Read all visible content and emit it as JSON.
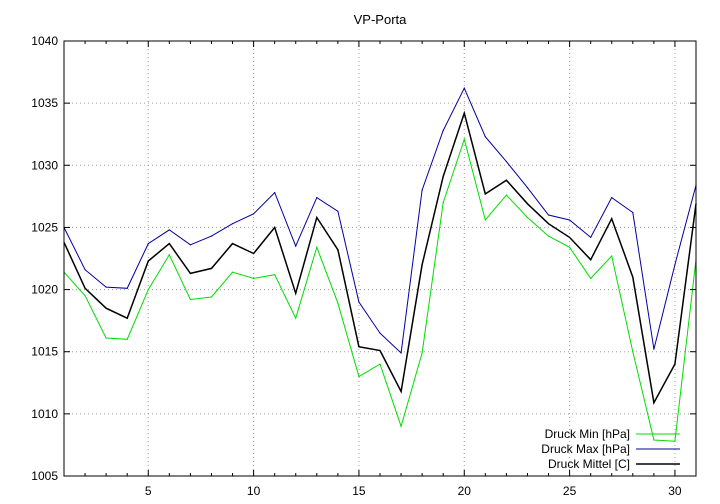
{
  "chart_data": {
    "type": "line",
    "title": "VP-Porta",
    "xlabel": "",
    "ylabel": "",
    "xlim": [
      1,
      31
    ],
    "ylim": [
      1005,
      1040
    ],
    "xticks": [
      5,
      10,
      15,
      20,
      25,
      30
    ],
    "yticks": [
      1005,
      1010,
      1015,
      1020,
      1025,
      1030,
      1035,
      1040
    ],
    "grid": true,
    "legend_position": "bottom-right",
    "x": [
      1,
      2,
      3,
      4,
      5,
      6,
      7,
      8,
      9,
      10,
      11,
      12,
      13,
      14,
      15,
      16,
      17,
      18,
      19,
      20,
      21,
      22,
      23,
      24,
      25,
      26,
      27,
      28,
      29,
      30,
      31
    ],
    "series": [
      {
        "name": "Druck Min [hPa]",
        "color": "#00dd00",
        "values": [
          1021.4,
          1019.5,
          1016.1,
          1016.0,
          1020.0,
          1022.8,
          1019.2,
          1019.4,
          1021.4,
          1020.9,
          1021.2,
          1017.7,
          1023.4,
          1018.9,
          1013.0,
          1014.0,
          1009.0,
          1014.9,
          1027.0,
          1032.1,
          1025.6,
          1027.6,
          1025.8,
          1024.3,
          1023.4,
          1020.9,
          1022.7,
          1015.0,
          1007.9,
          1007.8,
          1022.4
        ]
      },
      {
        "name": "Druck Max [hPa]",
        "color": "#0000a0",
        "values": [
          1025.0,
          1021.6,
          1020.2,
          1020.1,
          1023.7,
          1024.8,
          1023.6,
          1024.3,
          1025.3,
          1026.1,
          1027.8,
          1023.5,
          1027.4,
          1026.3,
          1019.0,
          1016.5,
          1014.9,
          1028.0,
          1032.8,
          1036.2,
          1032.3,
          1030.3,
          1028.2,
          1026.0,
          1025.6,
          1024.2,
          1027.4,
          1026.2,
          1015.2,
          1022.0,
          1028.4
        ]
      },
      {
        "name": "Druck Mittel [C]",
        "color": "#000000",
        "values": [
          1023.8,
          1020.1,
          1018.5,
          1017.7,
          1022.3,
          1023.7,
          1021.3,
          1021.7,
          1023.7,
          1022.9,
          1025.0,
          1019.7,
          1025.8,
          1023.2,
          1015.4,
          1015.1,
          1011.8,
          1022.0,
          1029.1,
          1034.2,
          1027.7,
          1028.8,
          1026.9,
          1025.3,
          1024.2,
          1022.4,
          1025.7,
          1021.0,
          1010.9,
          1014.0,
          1026.9
        ]
      }
    ]
  }
}
